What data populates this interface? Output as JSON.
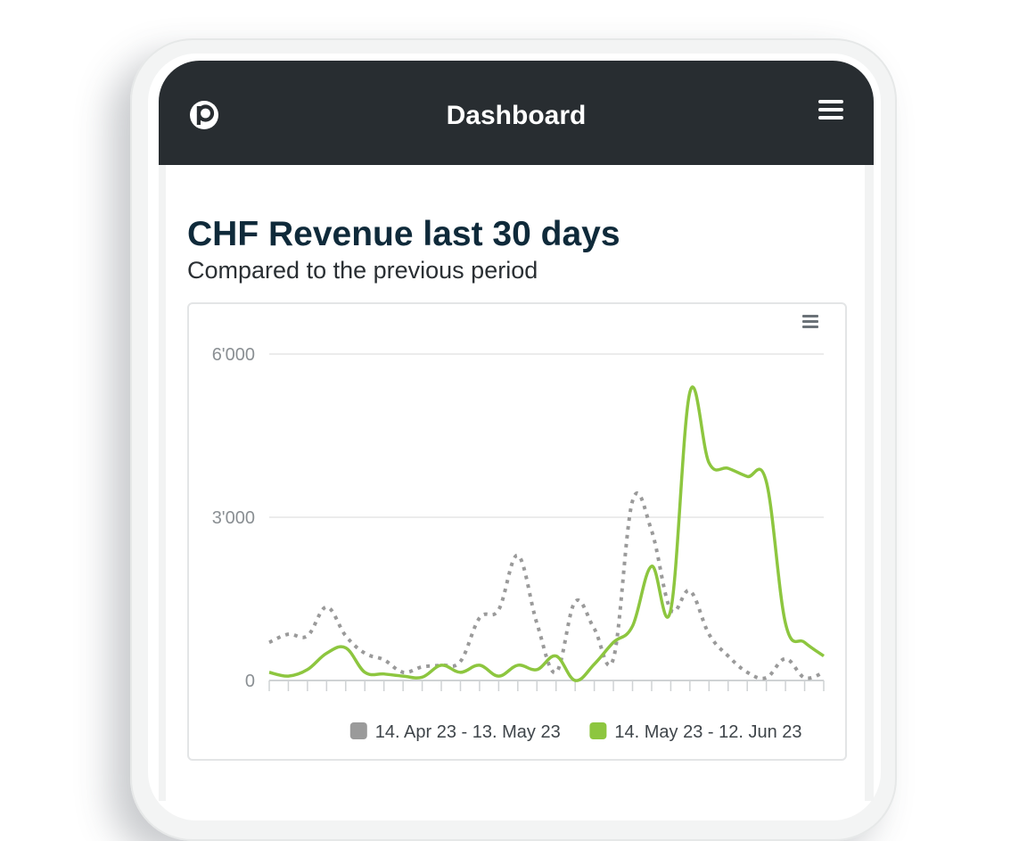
{
  "app": {
    "title": "Dashboard",
    "logo_icon": "p-logo-icon",
    "menu_icon": "hamburger-menu-icon"
  },
  "card": {
    "title": "CHF Revenue last 30 days",
    "subtitle": "Compared to the previous period",
    "chart_menu_icon": "chart-context-menu-icon"
  },
  "colors": {
    "appbar": "#282d31",
    "current_series": "#8dc63f",
    "previous_series": "#9a9a9a",
    "title": "#0f2a3a"
  },
  "chart_data": {
    "type": "line",
    "title": "",
    "xlabel": "",
    "ylabel": "",
    "ylim": [
      0,
      6000
    ],
    "yticks": [
      0,
      3000,
      6000
    ],
    "ytick_labels": [
      "0",
      "3'000",
      "6'000"
    ],
    "grid": true,
    "legend_position": "bottom-right",
    "x": [
      1,
      2,
      3,
      4,
      5,
      6,
      7,
      8,
      9,
      10,
      11,
      12,
      13,
      14,
      15,
      16,
      17,
      18,
      19,
      20,
      21,
      22,
      23,
      24,
      25,
      26,
      27,
      28,
      29,
      30
    ],
    "series": [
      {
        "name": "14. Apr 23 - 13. May 23",
        "color": "#9a9a9a",
        "style": "dotted",
        "values": [
          700,
          850,
          820,
          1350,
          820,
          500,
          380,
          150,
          250,
          280,
          350,
          1150,
          1300,
          2300,
          1050,
          150,
          1450,
          950,
          400,
          3300,
          2750,
          1300,
          1650,
          850,
          450,
          150,
          50,
          400,
          50,
          150
        ]
      },
      {
        "name": "14. May 23 - 12. Jun 23",
        "color": "#8dc63f",
        "style": "solid",
        "values": [
          150,
          80,
          200,
          500,
          600,
          150,
          120,
          80,
          60,
          280,
          150,
          280,
          80,
          280,
          200,
          450,
          0,
          300,
          700,
          1000,
          2100,
          1300,
          5300,
          4000,
          3900,
          3750,
          3650,
          1050,
          700,
          450
        ]
      }
    ]
  }
}
